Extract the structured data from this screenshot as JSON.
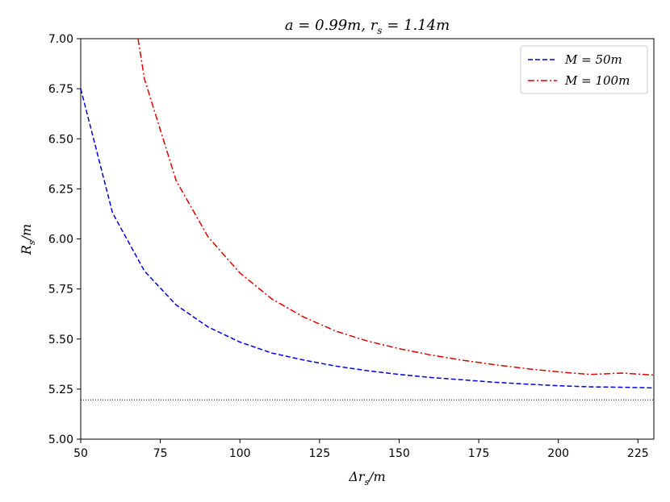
{
  "chart_data": {
    "type": "line",
    "title": "a = 0.99m, r_s = 1.14m",
    "xlabel": "Δr_s/m",
    "ylabel": "R_s/m",
    "xlim": [
      50,
      230
    ],
    "ylim": [
      5.0,
      7.0
    ],
    "xticks": [
      50,
      75,
      100,
      125,
      150,
      175,
      200,
      225
    ],
    "xtick_labels": [
      "50",
      "75",
      "100",
      "125",
      "150",
      "175",
      "200",
      "225"
    ],
    "yticks": [
      5.0,
      5.25,
      5.5,
      5.75,
      6.0,
      6.25,
      6.5,
      6.75,
      7.0
    ],
    "ytick_labels": [
      "5.00",
      "5.25",
      "5.50",
      "5.75",
      "6.00",
      "6.25",
      "6.50",
      "6.75",
      "7.00"
    ],
    "grid": false,
    "legend_position": "top-right",
    "reference_line": {
      "y": 5.196,
      "style": "dotted",
      "color": "#000000"
    },
    "series": [
      {
        "name": "M = 50m",
        "color": "#0000dd",
        "style": "dashed",
        "x": [
          50,
          60,
          70,
          80,
          90,
          100,
          110,
          120,
          130,
          140,
          150,
          160,
          170,
          180,
          190,
          200,
          210,
          220,
          230
        ],
        "y": [
          6.75,
          6.13,
          5.84,
          5.67,
          5.56,
          5.485,
          5.43,
          5.395,
          5.365,
          5.342,
          5.323,
          5.308,
          5.296,
          5.284,
          5.275,
          5.267,
          5.261,
          5.259,
          5.256
        ]
      },
      {
        "name": "M = 100m",
        "color": "#dd0000",
        "style": "dashdot",
        "x": [
          68,
          70,
          80,
          90,
          100,
          110,
          120,
          130,
          140,
          150,
          160,
          170,
          180,
          190,
          200,
          210,
          220,
          230
        ],
        "y": [
          7.0,
          6.8,
          6.29,
          6.01,
          5.83,
          5.7,
          5.61,
          5.54,
          5.49,
          5.452,
          5.42,
          5.394,
          5.372,
          5.352,
          5.336,
          5.323,
          5.33,
          5.32
        ]
      }
    ]
  }
}
